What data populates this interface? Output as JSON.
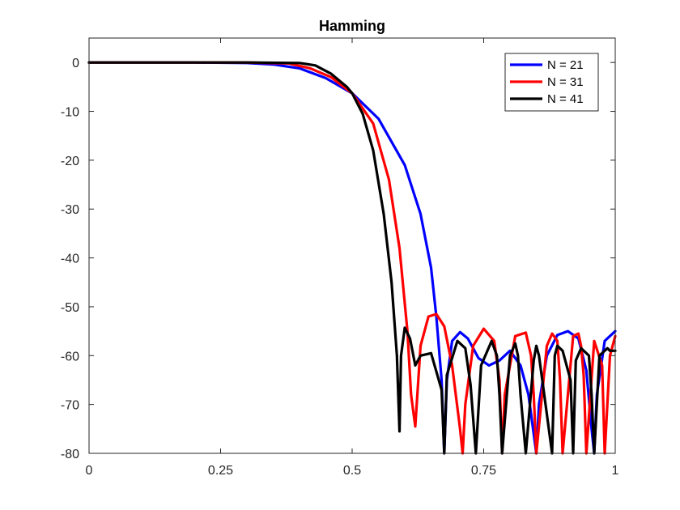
{
  "chart_data": {
    "type": "line",
    "title": "Hamming",
    "xlabel": "",
    "ylabel": "",
    "xlim": [
      0,
      1
    ],
    "ylim": [
      -80,
      5
    ],
    "xticks": [
      0,
      0.25,
      0.5,
      0.75,
      1
    ],
    "xtick_labels": [
      "0",
      "0.25",
      "0.5",
      "0.75",
      "1"
    ],
    "yticks": [
      0,
      -10,
      -20,
      -30,
      -40,
      -50,
      -60,
      -70,
      -80
    ],
    "ytick_labels": [
      "0",
      "-10",
      "-20",
      "-30",
      "-40",
      "-50",
      "-60",
      "-70",
      "-80"
    ],
    "grid": false,
    "legend_position": "top-right",
    "series": [
      {
        "name": "N = 21",
        "color": "#0000ff",
        "x": [
          0,
          0.1,
          0.2,
          0.3,
          0.35,
          0.4,
          0.45,
          0.5,
          0.55,
          0.6,
          0.63,
          0.65,
          0.66,
          0.67,
          0.675,
          0.68,
          0.69,
          0.705,
          0.72,
          0.74,
          0.76,
          0.78,
          0.8,
          0.82,
          0.835,
          0.845,
          0.85,
          0.855,
          0.87,
          0.89,
          0.91,
          0.93,
          0.945,
          0.955,
          0.96,
          0.965,
          0.98,
          1
        ],
        "y": [
          0,
          0,
          0,
          -0.1,
          -0.4,
          -1.2,
          -3.2,
          -6.3,
          -11.5,
          -21,
          -31,
          -42,
          -52,
          -65,
          -80,
          -65,
          -57,
          -55.2,
          -56.5,
          -60.5,
          -62,
          -61,
          -59,
          -62,
          -68,
          -76,
          -80,
          -70,
          -60,
          -55.8,
          -55,
          -56.5,
          -63,
          -75,
          -80,
          -68,
          -57,
          -55
        ]
      },
      {
        "name": "N = 31",
        "color": "#ff0000",
        "x": [
          0,
          0.1,
          0.2,
          0.3,
          0.38,
          0.42,
          0.46,
          0.5,
          0.54,
          0.57,
          0.59,
          0.605,
          0.612,
          0.62,
          0.63,
          0.645,
          0.66,
          0.675,
          0.69,
          0.705,
          0.71,
          0.715,
          0.73,
          0.75,
          0.77,
          0.78,
          0.785,
          0.79,
          0.81,
          0.83,
          0.84,
          0.845,
          0.85,
          0.87,
          0.88,
          0.89,
          0.895,
          0.9,
          0.92,
          0.93,
          0.935,
          0.94,
          0.945,
          0.96,
          0.975,
          0.98,
          0.99,
          1
        ],
        "y": [
          0,
          0,
          0,
          0,
          -0.2,
          -1.2,
          -3,
          -6.3,
          -12.5,
          -24,
          -38,
          -55,
          -68,
          -74.5,
          -58,
          -52,
          -51.5,
          -54,
          -62,
          -75,
          -80,
          -70,
          -58,
          -54.5,
          -57,
          -65,
          -80,
          -68,
          -56,
          -55.3,
          -60,
          -68,
          -80,
          -58,
          -55.5,
          -57,
          -65,
          -80,
          -56,
          -55.5,
          -58,
          -64,
          -80,
          -57,
          -62,
          -80,
          -60,
          -56
        ]
      },
      {
        "name": "N = 41",
        "color": "#000000",
        "x": [
          0,
          0.1,
          0.2,
          0.3,
          0.4,
          0.43,
          0.46,
          0.49,
          0.5,
          0.52,
          0.54,
          0.56,
          0.575,
          0.585,
          0.59,
          0.593,
          0.6,
          0.61,
          0.62,
          0.63,
          0.65,
          0.67,
          0.675,
          0.68,
          0.7,
          0.715,
          0.725,
          0.735,
          0.745,
          0.765,
          0.775,
          0.78,
          0.785,
          0.8,
          0.81,
          0.815,
          0.82,
          0.83,
          0.845,
          0.85,
          0.855,
          0.865,
          0.88,
          0.885,
          0.89,
          0.9,
          0.915,
          0.92,
          0.925,
          0.935,
          0.95,
          0.955,
          0.96,
          0.97,
          0.985,
          0.99,
          1
        ],
        "y": [
          0,
          0,
          0,
          0,
          -0.1,
          -0.6,
          -2.3,
          -5,
          -6.3,
          -10.5,
          -18,
          -31,
          -45,
          -60,
          -75.5,
          -60,
          -54.3,
          -56.5,
          -62,
          -60,
          -59.5,
          -67,
          -80,
          -64,
          -57,
          -58.5,
          -66,
          -80,
          -62,
          -57,
          -60,
          -68,
          -80,
          -60,
          -57.5,
          -60,
          -68,
          -80,
          -61,
          -58,
          -60,
          -68,
          -80,
          -60,
          -58,
          -59,
          -65,
          -80,
          -61,
          -58.5,
          -60,
          -68,
          -80,
          -60,
          -58.5,
          -59,
          -59
        ]
      }
    ]
  }
}
